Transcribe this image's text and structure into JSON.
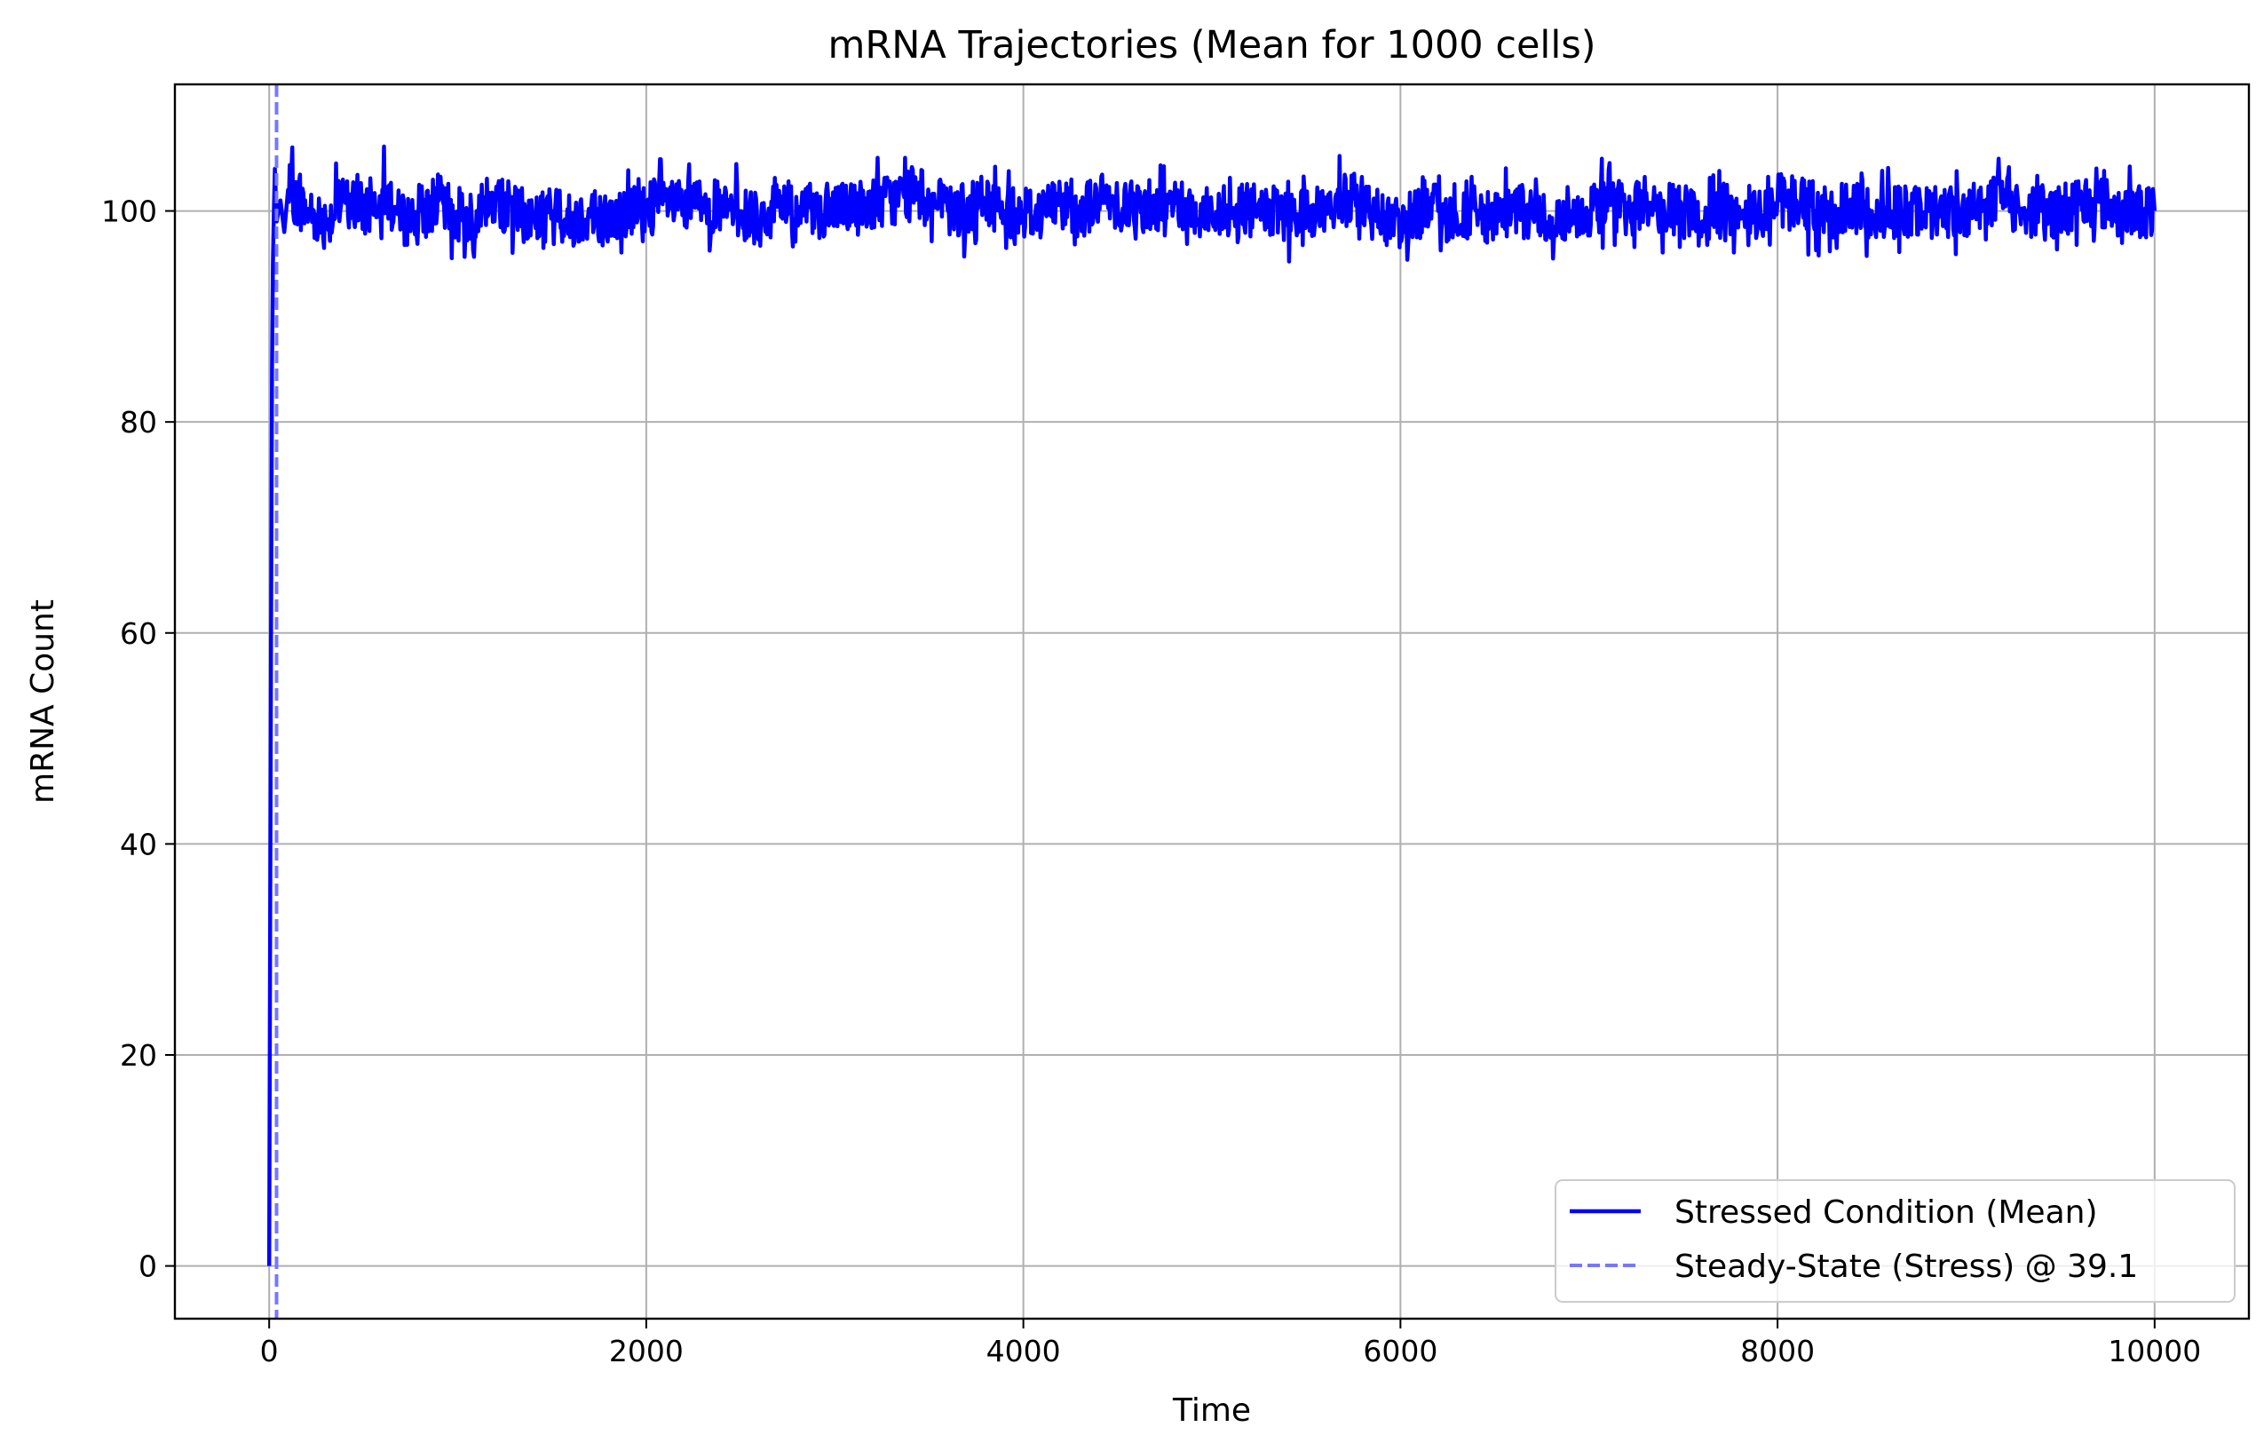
{
  "chart_data": {
    "type": "line",
    "title": "mRNA Trajectories (Mean for 1000 cells)",
    "xlabel": "Time",
    "ylabel": "mRNA Count",
    "xlim": [
      -500,
      10500
    ],
    "ylim": [
      -5,
      112
    ],
    "xticks": [
      0,
      2000,
      4000,
      6000,
      8000,
      10000
    ],
    "xtick_labels": [
      "0",
      "2000",
      "4000",
      "6000",
      "8000",
      "10000"
    ],
    "yticks": [
      0,
      20,
      40,
      60,
      80,
      100
    ],
    "ytick_labels": [
      "0",
      "20",
      "40",
      "60",
      "80",
      "100"
    ],
    "grid": true,
    "legend_position": "lower-right",
    "series": [
      {
        "name": "Stressed Condition (Mean)",
        "style": "solid",
        "color": "#0000ff",
        "x": [
          0,
          5,
          10,
          15,
          20,
          25,
          30,
          40,
          60,
          80,
          100,
          200,
          300,
          400,
          500,
          600,
          700,
          800,
          900,
          1000,
          1100,
          1200,
          1300,
          1400,
          1500,
          1600,
          1700,
          1800,
          1900,
          2000,
          2100,
          2200,
          2300,
          2400,
          2500,
          2600,
          2700,
          2800,
          2900,
          3000,
          3100,
          3200,
          3300,
          3400,
          3500,
          3600,
          3700,
          3800,
          3900,
          4000,
          4100,
          4200,
          4300,
          4400,
          4500,
          4600,
          4700,
          4800,
          4900,
          5000,
          5100,
          5200,
          5300,
          5400,
          5500,
          5600,
          5700,
          5800,
          5900,
          6000,
          6100,
          6200,
          6300,
          6400,
          6500,
          6600,
          6700,
          6800,
          6900,
          7000,
          7100,
          7200,
          7300,
          7400,
          7500,
          7600,
          7700,
          7800,
          7900,
          8000,
          8100,
          8200,
          8300,
          8400,
          8500,
          8600,
          8700,
          8800,
          8900,
          9000,
          9100,
          9200,
          9300,
          9400,
          9500,
          9600,
          9700,
          9800,
          9900,
          10000
        ],
        "y": [
          0,
          30,
          60,
          85,
          95,
          100,
          104,
          99,
          101,
          98,
          102,
          100,
          99,
          101,
          100,
          102,
          99,
          100,
          101,
          99,
          100,
          101,
          100,
          99,
          100,
          99,
          100,
          99,
          100,
          100,
          101,
          100,
          101,
          100,
          100,
          99,
          101,
          100,
          100,
          100,
          100,
          101,
          101,
          102,
          101,
          100,
          100,
          101,
          100,
          100,
          100,
          101,
          100,
          101,
          101,
          100,
          101,
          101,
          100,
          100,
          100,
          100,
          100,
          99,
          100,
          100,
          101,
          101,
          99,
          99,
          100,
          100,
          99,
          100,
          99,
          100,
          100,
          99,
          100,
          100,
          101,
          100,
          101,
          100,
          100,
          99,
          100,
          100,
          100,
          101,
          101,
          100,
          100,
          100,
          100,
          100,
          100,
          100,
          100,
          100,
          101,
          101,
          100,
          100,
          100,
          101,
          101,
          100,
          100,
          100
        ]
      },
      {
        "name": "Steady-State (Stress) @ 39.1",
        "style": "dashed",
        "color": "#7777ff",
        "x_value": 39.1
      }
    ]
  },
  "colors": {
    "line": "#0000ff",
    "vline": "#7777ff",
    "grid": "#b0b0b0",
    "axes": "#000000"
  }
}
